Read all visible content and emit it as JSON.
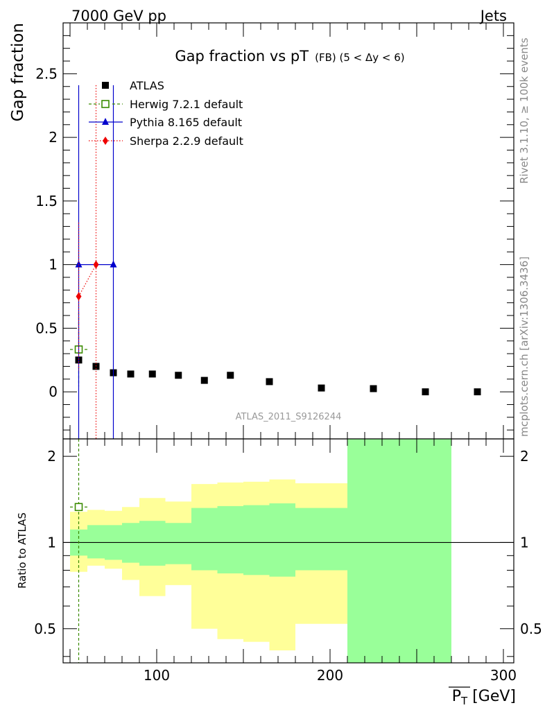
{
  "header": {
    "left": "7000 GeV pp",
    "right": "Jets"
  },
  "side": {
    "rivet": "Rivet 3.1.10, ≥ 100k events",
    "mcplots": "mcplots.cern.ch [arXiv:1306.3436]"
  },
  "chart_data": [
    {
      "type": "scatter",
      "title_main": "Gap fraction vs pT",
      "title_sub": "(FB)  (5 < Δy < 6)",
      "ylabel": "Gap fraction",
      "watermark": "ATLAS_2011_S9126244",
      "xlim": [
        46,
        306
      ],
      "ylim": [
        -0.37,
        2.9
      ],
      "yticks": [
        0,
        0.5,
        1,
        1.5,
        2,
        2.5
      ],
      "ytick_labels": [
        "0",
        "0.5",
        "1",
        "1.5",
        "2",
        "2.5"
      ],
      "series": [
        {
          "name": "ATLAS",
          "color": "#000000",
          "marker": "square",
          "x": [
            55,
            65,
            75,
            85,
            97.5,
            112.5,
            127.5,
            142.5,
            165,
            195,
            225,
            255,
            285
          ],
          "y": [
            0.25,
            0.2,
            0.15,
            0.14,
            0.14,
            0.13,
            0.09,
            0.13,
            0.08,
            0.03,
            0.025,
            0.0,
            0.0
          ]
        },
        {
          "name": "Herwig 7.2.1 default",
          "color": "#3a8a00",
          "marker": "open-square",
          "line": "dashed",
          "x": [
            55
          ],
          "y": [
            0.333
          ],
          "xerr": [
            5
          ],
          "yerr": [
            0.29
          ]
        },
        {
          "name": "Pythia 8.165 default",
          "color": "#0000cc",
          "marker": "triangle",
          "line": "solid",
          "x": [
            55,
            75
          ],
          "y": [
            1.0,
            1.0
          ],
          "yerr": [
            1.41,
            1.41
          ]
        },
        {
          "name": "Sherpa 2.2.9 default",
          "color": "#ee0000",
          "marker": "diamond",
          "line": "dotted",
          "x": [
            55,
            65
          ],
          "y": [
            0.75,
            1.0
          ],
          "yerr": [
            0.58,
            1.41
          ]
        }
      ]
    },
    {
      "type": "area",
      "ylabel": "Ratio to ATLAS",
      "xlabel_main": "P",
      "xlabel_sub": "T",
      "xlabel_unit": " [GeV]",
      "xlim": [
        46,
        306
      ],
      "ylim": [
        0.38,
        2.3
      ],
      "xticks": [
        100,
        200,
        300
      ],
      "xtick_labels": [
        "100",
        "200",
        "300"
      ],
      "yticks": [
        0.5,
        1,
        2
      ],
      "ytick_labels": [
        "0.5",
        "1",
        "2"
      ],
      "reference_line": 1,
      "bins": [
        {
          "lo": 50,
          "hi": 60,
          "outer": [
            0.79,
            1.28
          ],
          "inner": [
            0.9,
            1.11
          ]
        },
        {
          "lo": 60,
          "hi": 70,
          "outer": [
            0.83,
            1.3
          ],
          "inner": [
            0.88,
            1.15
          ]
        },
        {
          "lo": 70,
          "hi": 80,
          "outer": [
            0.81,
            1.29
          ],
          "inner": [
            0.87,
            1.15
          ]
        },
        {
          "lo": 80,
          "hi": 90,
          "outer": [
            0.74,
            1.33
          ],
          "inner": [
            0.85,
            1.17
          ]
        },
        {
          "lo": 90,
          "hi": 105,
          "outer": [
            0.65,
            1.43
          ],
          "inner": [
            0.83,
            1.19
          ]
        },
        {
          "lo": 105,
          "hi": 120,
          "outer": [
            0.71,
            1.39
          ],
          "inner": [
            0.84,
            1.17
          ]
        },
        {
          "lo": 120,
          "hi": 135,
          "outer": [
            0.5,
            1.6
          ],
          "inner": [
            0.8,
            1.32
          ]
        },
        {
          "lo": 135,
          "hi": 150,
          "outer": [
            0.46,
            1.62
          ],
          "inner": [
            0.78,
            1.34
          ]
        },
        {
          "lo": 150,
          "hi": 165,
          "outer": [
            0.45,
            1.63
          ],
          "inner": [
            0.77,
            1.35
          ]
        },
        {
          "lo": 165,
          "hi": 180,
          "outer": [
            0.42,
            1.66
          ],
          "inner": [
            0.76,
            1.37
          ]
        },
        {
          "lo": 180,
          "hi": 210,
          "outer": [
            0.52,
            1.61
          ],
          "inner": [
            0.8,
            1.32
          ]
        },
        {
          "lo": 210,
          "hi": 240,
          "outer": [
            0.38,
            2.3
          ],
          "inner": [
            0.38,
            2.3
          ]
        },
        {
          "lo": 240,
          "hi": 270,
          "outer": [
            0.38,
            2.3
          ],
          "inner": [
            0.38,
            2.3
          ]
        }
      ],
      "series": [
        {
          "name": "Herwig 7.2.1 default",
          "color": "#3a8a00",
          "x": [
            55
          ],
          "y": [
            1.33
          ],
          "xerr": [
            5
          ]
        }
      ]
    }
  ]
}
